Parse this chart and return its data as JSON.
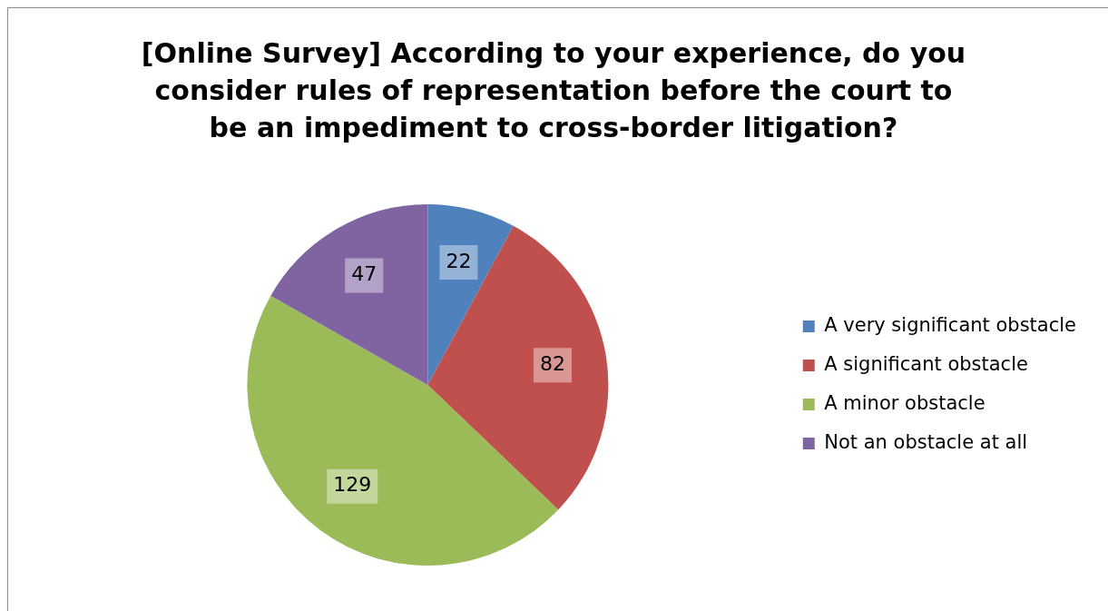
{
  "chart_data": {
    "type": "pie",
    "title": "[Online Survey] According to your experience, do you consider rules of representation before the court to be an impediment to cross-border litigation?",
    "categories": [
      "A very significant obstacle",
      "A significant obstacle",
      "A minor obstacle",
      "Not an obstacle at all"
    ],
    "values": [
      22,
      82,
      129,
      47
    ],
    "colors": [
      "#4f81bd",
      "#c0504d",
      "#9bbb59",
      "#8064a2"
    ],
    "data_labels": true,
    "legend": "right"
  }
}
